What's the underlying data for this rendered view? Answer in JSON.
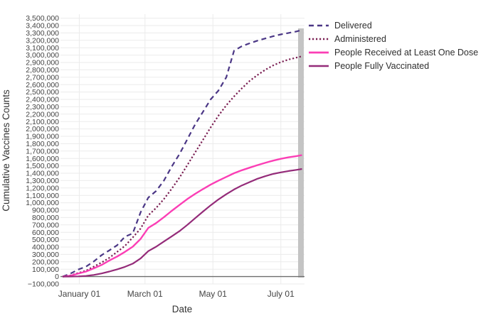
{
  "figure": {
    "background": "#ffffff",
    "grid_color": "#ebebeb",
    "zero_line_color": "#6e6e6e",
    "right_edge_bar_color": "#c4c4c4",
    "tick_color": "#444444",
    "axis_title_color": "#333333"
  },
  "chart_data": {
    "type": "line",
    "title": "",
    "xlabel": "Date",
    "ylabel": "Cumulative Vaccines Counts",
    "grid": true,
    "legend_position": "right-top",
    "ylim": [
      -100000,
      3500000
    ],
    "y_tick_step": 100000,
    "y_tick_labels": [
      "−100,000",
      "0",
      "100,000",
      "200,000",
      "300,000",
      "400,000",
      "500,000",
      "600,000",
      "700,000",
      "800,000",
      "900,000",
      "1,000,000",
      "1,100,000",
      "1,200,000",
      "1,300,000",
      "1,400,000",
      "1,500,000",
      "1,600,000",
      "1,700,000",
      "1,800,000",
      "1,900,000",
      "2,000,000",
      "2,100,000",
      "2,200,000",
      "2,300,000",
      "2,400,000",
      "2,500,000",
      "2,600,000",
      "2,700,000",
      "2,800,000",
      "2,900,000",
      "3,000,000",
      "3,100,000",
      "3,200,000",
      "3,300,000",
      "3,400,000",
      "3,500,000"
    ],
    "x_ticks": [
      {
        "day": 15,
        "label": "January 01"
      },
      {
        "day": 74,
        "label": "March 01"
      },
      {
        "day": 135,
        "label": "May 01"
      },
      {
        "day": 196,
        "label": "July 01"
      }
    ],
    "x_days": [
      0,
      7,
      14,
      21,
      28,
      35,
      42,
      49,
      56,
      63,
      70,
      77,
      84,
      91,
      98,
      105,
      112,
      119,
      126,
      133,
      140,
      147,
      154,
      161,
      168,
      175,
      182,
      189,
      196,
      203,
      210,
      215
    ],
    "series": [
      {
        "name": "Delivered",
        "style": "dashed",
        "color": "#4b3786",
        "width": 2.2,
        "values": [
          0,
          40000,
          95000,
          135000,
          205000,
          290000,
          355000,
          425000,
          540000,
          585000,
          870000,
          1070000,
          1160000,
          1300000,
          1490000,
          1660000,
          1860000,
          2060000,
          2230000,
          2400000,
          2520000,
          2700000,
          3060000,
          3120000,
          3160000,
          3195000,
          3225000,
          3255000,
          3280000,
          3300000,
          3320000,
          3340000
        ]
      },
      {
        "name": "Administered",
        "style": "dotted",
        "color": "#7a1e52",
        "width": 2.2,
        "values": [
          0,
          15000,
          48000,
          80000,
          135000,
          190000,
          255000,
          335000,
          415000,
          530000,
          650000,
          830000,
          930000,
          1050000,
          1190000,
          1340000,
          1510000,
          1680000,
          1850000,
          2020000,
          2180000,
          2320000,
          2440000,
          2550000,
          2650000,
          2730000,
          2800000,
          2860000,
          2905000,
          2940000,
          2965000,
          2985000
        ]
      },
      {
        "name": "People Received at Least One Dose",
        "style": "solid",
        "color": "#fb3eb5",
        "width": 2.4,
        "values": [
          0,
          12000,
          40000,
          68000,
          112000,
          158000,
          218000,
          272000,
          335000,
          405000,
          510000,
          660000,
          725000,
          805000,
          890000,
          970000,
          1050000,
          1120000,
          1185000,
          1245000,
          1300000,
          1350000,
          1400000,
          1440000,
          1475000,
          1510000,
          1540000,
          1570000,
          1595000,
          1615000,
          1632000,
          1645000
        ]
      },
      {
        "name": "People Fully Vaccinated",
        "style": "solid",
        "color": "#942b79",
        "width": 2.2,
        "values": [
          0,
          1000,
          3000,
          9000,
          22000,
          42000,
          68000,
          98000,
          132000,
          175000,
          245000,
          345000,
          405000,
          475000,
          545000,
          615000,
          700000,
          790000,
          880000,
          965000,
          1045000,
          1115000,
          1180000,
          1235000,
          1280000,
          1325000,
          1360000,
          1390000,
          1412000,
          1430000,
          1445000,
          1458000
        ]
      }
    ]
  }
}
